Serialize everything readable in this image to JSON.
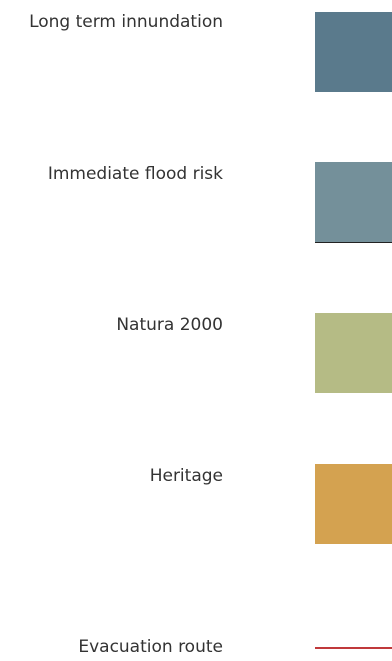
{
  "legend": {
    "items": [
      {
        "label": "Long term innundation",
        "symbol": "area",
        "color": "#5a7a8c"
      },
      {
        "label": "Immediate flood risk",
        "symbol": "area",
        "color": "#74909a"
      },
      {
        "label": "Natura 2000",
        "symbol": "area",
        "color": "#b5bb85"
      },
      {
        "label": "Heritage",
        "symbol": "area",
        "color": "#d4a250"
      },
      {
        "label": "Evacuation route",
        "symbol": "line",
        "color": "#c0393b"
      }
    ]
  }
}
